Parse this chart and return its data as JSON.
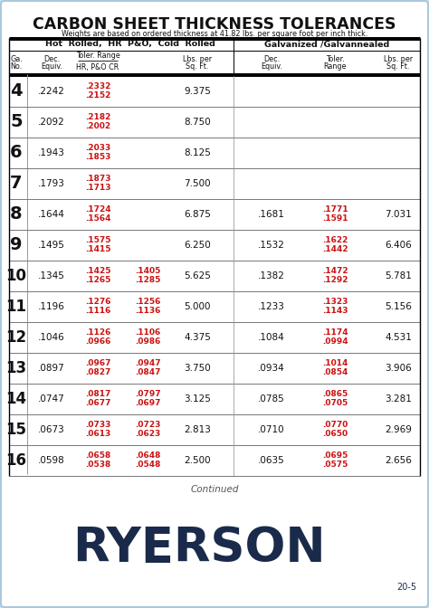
{
  "title": "CARBON SHEET THICKNESS TOLERANCES",
  "subtitle": "Weights are based on ordered thickness at 41.82 lbs. per square foot per inch thick.",
  "col_headers_left": "Hot  Rolled,  HR  P&O,  Cold  Rolled",
  "col_headers_right": "Galvanized /Galvannealed",
  "rows": [
    {
      "ga": "4",
      "dec": ".2242",
      "tol_hr_top": ".2332",
      "tol_hr_bot": ".2152",
      "tol_cr_top": "",
      "tol_cr_bot": "",
      "lbs_hr": "9.375",
      "dec_galv": "",
      "tol_galv_top": "",
      "tol_galv_bot": "",
      "lbs_galv": ""
    },
    {
      "ga": "5",
      "dec": ".2092",
      "tol_hr_top": ".2182",
      "tol_hr_bot": ".2002",
      "tol_cr_top": "",
      "tol_cr_bot": "",
      "lbs_hr": "8.750",
      "dec_galv": "",
      "tol_galv_top": "",
      "tol_galv_bot": "",
      "lbs_galv": ""
    },
    {
      "ga": "6",
      "dec": ".1943",
      "tol_hr_top": ".2033",
      "tol_hr_bot": ".1853",
      "tol_cr_top": "",
      "tol_cr_bot": "",
      "lbs_hr": "8.125",
      "dec_galv": "",
      "tol_galv_top": "",
      "tol_galv_bot": "",
      "lbs_galv": ""
    },
    {
      "ga": "7",
      "dec": ".1793",
      "tol_hr_top": ".1873",
      "tol_hr_bot": ".1713",
      "tol_cr_top": "",
      "tol_cr_bot": "",
      "lbs_hr": "7.500",
      "dec_galv": "",
      "tol_galv_top": "",
      "tol_galv_bot": "",
      "lbs_galv": ""
    },
    {
      "ga": "8",
      "dec": ".1644",
      "tol_hr_top": ".1724",
      "tol_hr_bot": ".1564",
      "tol_cr_top": "",
      "tol_cr_bot": "",
      "lbs_hr": "6.875",
      "dec_galv": ".1681",
      "tol_galv_top": ".1771",
      "tol_galv_bot": ".1591",
      "lbs_galv": "7.031"
    },
    {
      "ga": "9",
      "dec": ".1495",
      "tol_hr_top": ".1575",
      "tol_hr_bot": ".1415",
      "tol_cr_top": "",
      "tol_cr_bot": "",
      "lbs_hr": "6.250",
      "dec_galv": ".1532",
      "tol_galv_top": ".1622",
      "tol_galv_bot": ".1442",
      "lbs_galv": "6.406"
    },
    {
      "ga": "10",
      "dec": ".1345",
      "tol_hr_top": ".1425",
      "tol_hr_bot": ".1265",
      "tol_cr_top": ".1405",
      "tol_cr_bot": ".1285",
      "lbs_hr": "5.625",
      "dec_galv": ".1382",
      "tol_galv_top": ".1472",
      "tol_galv_bot": ".1292",
      "lbs_galv": "5.781"
    },
    {
      "ga": "11",
      "dec": ".1196",
      "tol_hr_top": ".1276",
      "tol_hr_bot": ".1116",
      "tol_cr_top": ".1256",
      "tol_cr_bot": ".1136",
      "lbs_hr": "5.000",
      "dec_galv": ".1233",
      "tol_galv_top": ".1323",
      "tol_galv_bot": ".1143",
      "lbs_galv": "5.156"
    },
    {
      "ga": "12",
      "dec": ".1046",
      "tol_hr_top": ".1126",
      "tol_hr_bot": ".0966",
      "tol_cr_top": ".1106",
      "tol_cr_bot": ".0986",
      "lbs_hr": "4.375",
      "dec_galv": ".1084",
      "tol_galv_top": ".1174",
      "tol_galv_bot": ".0994",
      "lbs_galv": "4.531"
    },
    {
      "ga": "13",
      "dec": ".0897",
      "tol_hr_top": ".0967",
      "tol_hr_bot": ".0827",
      "tol_cr_top": ".0947",
      "tol_cr_bot": ".0847",
      "lbs_hr": "3.750",
      "dec_galv": ".0934",
      "tol_galv_top": ".1014",
      "tol_galv_bot": ".0854",
      "lbs_galv": "3.906"
    },
    {
      "ga": "14",
      "dec": ".0747",
      "tol_hr_top": ".0817",
      "tol_hr_bot": ".0677",
      "tol_cr_top": ".0797",
      "tol_cr_bot": ".0697",
      "lbs_hr": "3.125",
      "dec_galv": ".0785",
      "tol_galv_top": ".0865",
      "tol_galv_bot": ".0705",
      "lbs_galv": "3.281"
    },
    {
      "ga": "15",
      "dec": ".0673",
      "tol_hr_top": ".0733",
      "tol_hr_bot": ".0613",
      "tol_cr_top": ".0723",
      "tol_cr_bot": ".0623",
      "lbs_hr": "2.813",
      "dec_galv": ".0710",
      "tol_galv_top": ".0770",
      "tol_galv_bot": ".0650",
      "lbs_galv": "2.969"
    },
    {
      "ga": "16",
      "dec": ".0598",
      "tol_hr_top": ".0658",
      "tol_hr_bot": ".0538",
      "tol_cr_top": ".0648",
      "tol_cr_bot": ".0548",
      "lbs_hr": "2.500",
      "dec_galv": ".0635",
      "tol_galv_top": ".0695",
      "tol_galv_bot": ".0575",
      "lbs_galv": "2.656"
    }
  ],
  "footer_text": "Continued",
  "brand": "RYERSON",
  "page_ref": "20-5",
  "bg_color": "#ccdded",
  "white": "#ffffff",
  "red_color": "#cc1111",
  "black_color": "#111111",
  "dark_blue": "#1a2a4a",
  "gray_line": "#888888",
  "ryerson_blue": "#1a2a4a"
}
